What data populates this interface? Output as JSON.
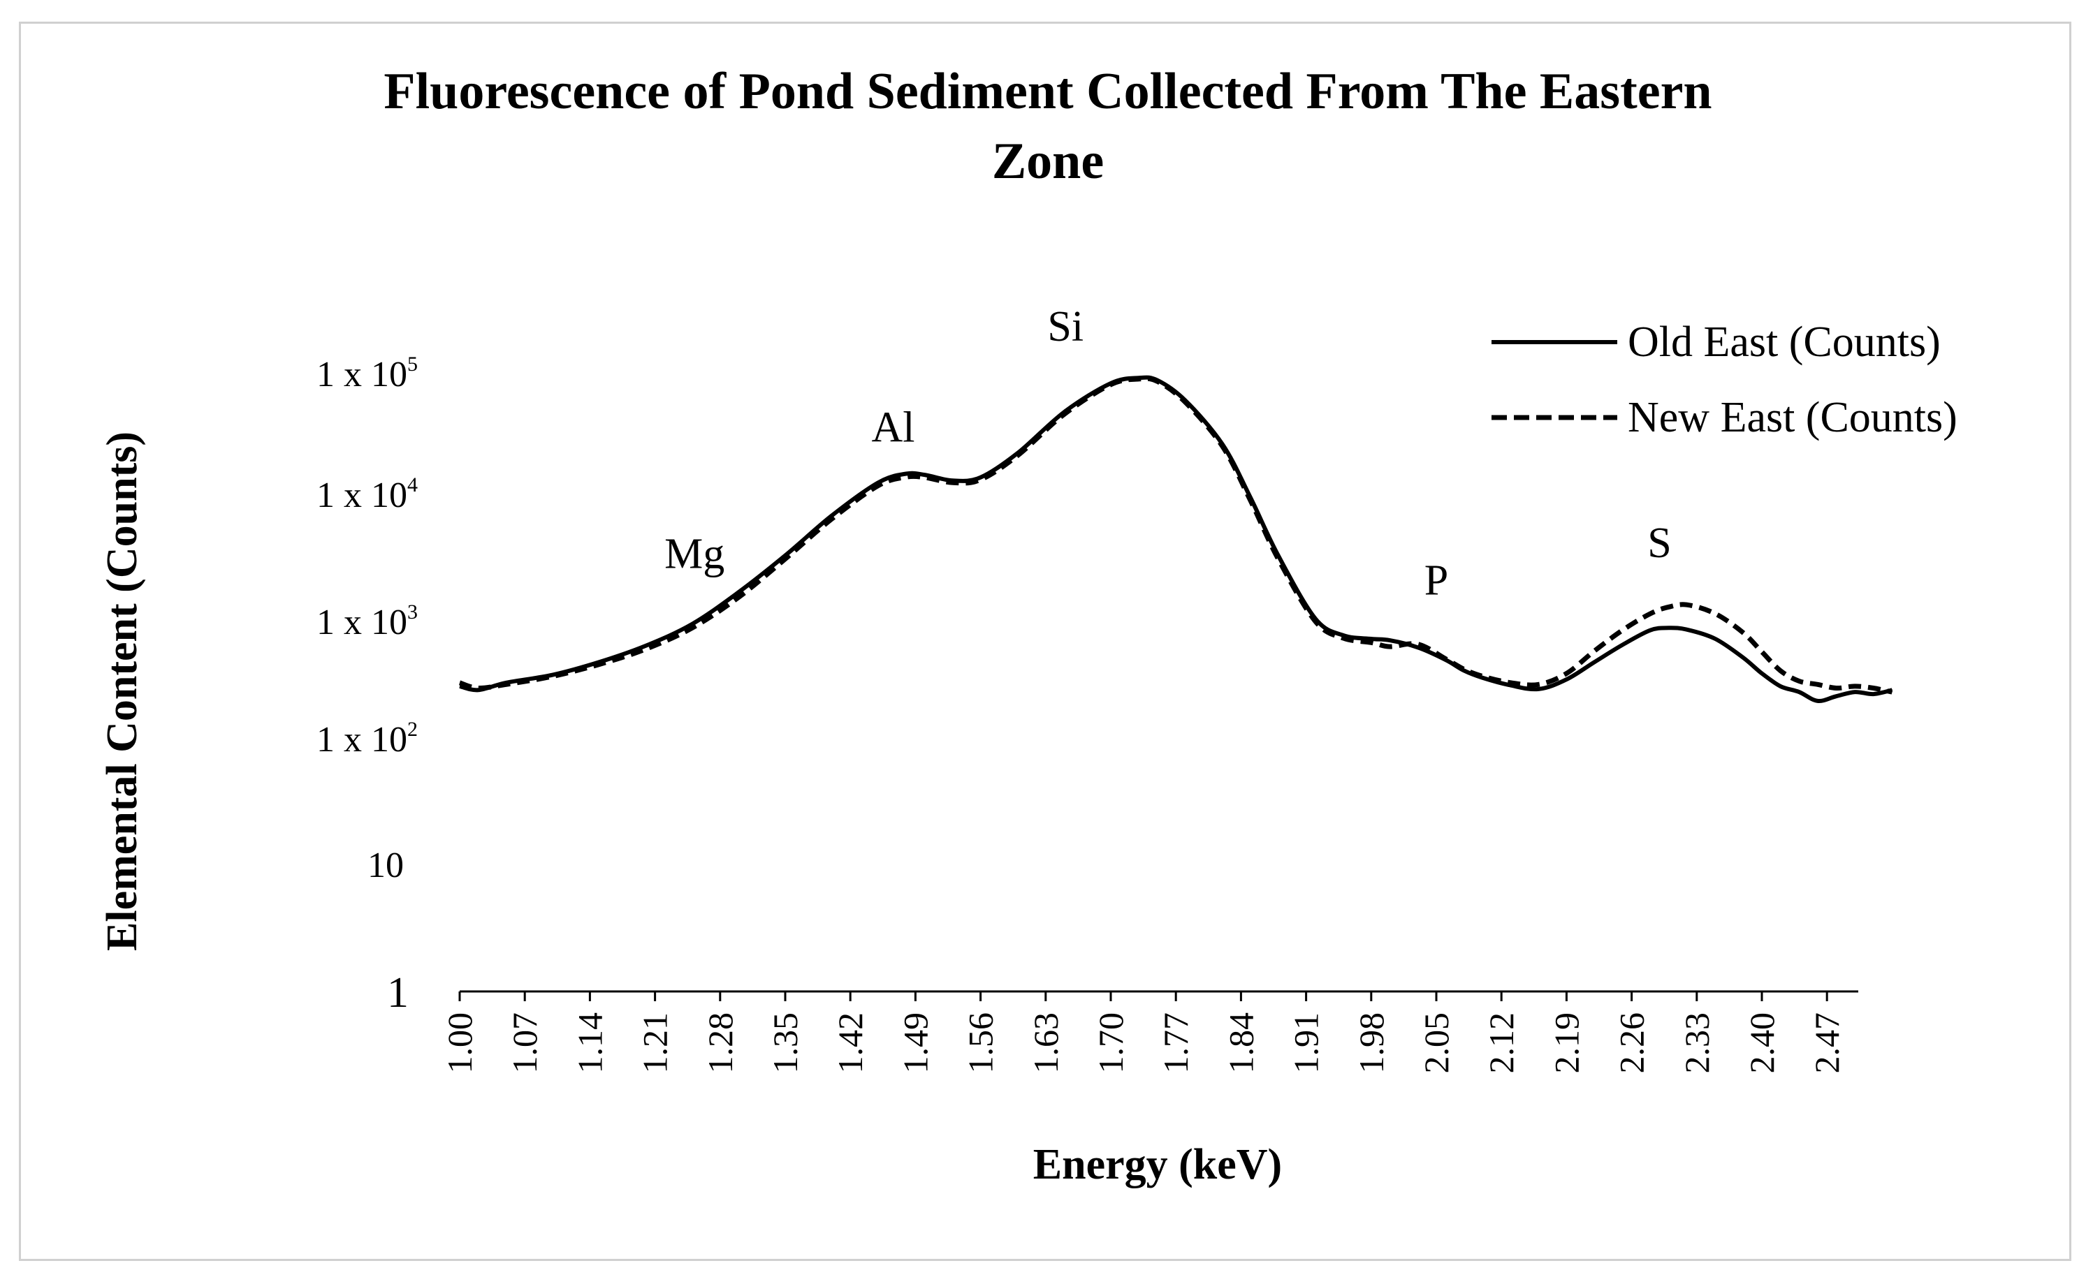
{
  "chart_data": {
    "type": "line",
    "title_lines": [
      "Fluorescence of Pond Sediment Collected From The Eastern",
      "Zone"
    ],
    "xlabel": "Energy (keV)",
    "ylabel": "Elemental Content (Counts)",
    "y_scale": "log",
    "ylim": [
      1,
      200000
    ],
    "xlim": [
      1.0,
      2.54
    ],
    "x_ticks": [
      "1.00",
      "1.07",
      "1.14",
      "1.21",
      "1.28",
      "1.35",
      "1.42",
      "1.49",
      "1.56",
      "1.63",
      "1.70",
      "1.77",
      "1.84",
      "1.91",
      "1.98",
      "2.05",
      "2.12",
      "2.19",
      "2.26",
      "2.33",
      "2.40",
      "2.47"
    ],
    "y_ticks": [
      {
        "value": 1,
        "base": "1",
        "exp": ""
      },
      {
        "value": 10,
        "base": "10",
        "exp": ""
      },
      {
        "value": 100,
        "base": "1 x 10",
        "exp": "2"
      },
      {
        "value": 1000,
        "base": "1 x 10",
        "exp": "3"
      },
      {
        "value": 10000,
        "base": "1 x 10",
        "exp": "4"
      },
      {
        "value": 100000,
        "base": "1 x 10",
        "exp": "5"
      }
    ],
    "annotations": [
      {
        "text": "Mg",
        "x": 1.26,
        "y": 1800
      },
      {
        "text": "Al",
        "x": 1.46,
        "y": 16000
      },
      {
        "text": "Si",
        "x": 1.74,
        "y": 90000
      },
      {
        "text": "P",
        "x": 2.05,
        "y": 800
      },
      {
        "text": "S",
        "x": 2.32,
        "y": 1500
      }
    ],
    "series": [
      {
        "name": "Old East (Counts)",
        "style": "solid",
        "x": [
          1.0,
          1.02,
          1.05,
          1.1,
          1.15,
          1.2,
          1.25,
          1.3,
          1.35,
          1.4,
          1.45,
          1.48,
          1.5,
          1.53,
          1.56,
          1.6,
          1.65,
          1.7,
          1.73,
          1.75,
          1.78,
          1.82,
          1.85,
          1.88,
          1.92,
          1.95,
          1.98,
          2.0,
          2.03,
          2.06,
          2.08,
          2.1,
          2.13,
          2.16,
          2.19,
          2.22,
          2.25,
          2.28,
          2.3,
          2.32,
          2.35,
          2.38,
          2.4,
          2.42,
          2.44,
          2.46,
          2.48,
          2.5,
          2.52,
          2.54
        ],
        "y": [
          280,
          260,
          300,
          350,
          450,
          620,
          950,
          1700,
          3300,
          6800,
          12500,
          14800,
          14500,
          13000,
          13800,
          22000,
          48000,
          83000,
          92000,
          88000,
          60000,
          26000,
          9500,
          3300,
          1050,
          760,
          710,
          690,
          600,
          470,
          380,
          330,
          285,
          265,
          320,
          450,
          630,
          840,
          880,
          850,
          710,
          490,
          360,
          280,
          250,
          210,
          230,
          250,
          240,
          260
        ]
      },
      {
        "name": "New East (Counts)",
        "style": "dashed",
        "x": [
          1.0,
          1.02,
          1.05,
          1.1,
          1.15,
          1.2,
          1.25,
          1.3,
          1.35,
          1.4,
          1.45,
          1.48,
          1.5,
          1.53,
          1.56,
          1.6,
          1.65,
          1.7,
          1.73,
          1.75,
          1.78,
          1.82,
          1.85,
          1.88,
          1.92,
          1.95,
          1.98,
          2.0,
          2.03,
          2.06,
          2.08,
          2.1,
          2.13,
          2.16,
          2.19,
          2.22,
          2.25,
          2.28,
          2.3,
          2.32,
          2.35,
          2.38,
          2.4,
          2.42,
          2.44,
          2.46,
          2.48,
          2.5,
          2.52,
          2.54
        ],
        "y": [
          300,
          270,
          290,
          340,
          430,
          580,
          880,
          1550,
          3100,
          6400,
          11800,
          13900,
          13800,
          12500,
          13200,
          21000,
          46000,
          81000,
          90000,
          86000,
          58000,
          25000,
          9000,
          3100,
          1000,
          720,
          660,
          610,
          640,
          480,
          390,
          340,
          300,
          290,
          360,
          560,
          840,
          1150,
          1300,
          1350,
          1150,
          800,
          550,
          380,
          310,
          290,
          270,
          280,
          270,
          250
        ]
      }
    ]
  }
}
